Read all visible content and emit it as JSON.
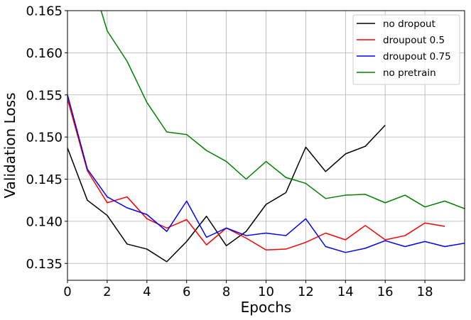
{
  "chart_data": {
    "type": "line",
    "title": "",
    "xlabel": "Epochs",
    "ylabel": "Validation Loss",
    "xlim": [
      0,
      20
    ],
    "ylim": [
      0.133,
      0.165
    ],
    "xticks": [
      0,
      2,
      4,
      6,
      8,
      10,
      12,
      14,
      16,
      18
    ],
    "xtick_labels": [
      "0",
      "2",
      "4",
      "6",
      "8",
      "10",
      "12",
      "14",
      "16",
      "18"
    ],
    "yticks": [
      0.135,
      0.14,
      0.145,
      0.15,
      0.155,
      0.16,
      0.165
    ],
    "ytick_labels": [
      "0.135",
      "0.140",
      "0.145",
      "0.150",
      "0.155",
      "0.160",
      "0.165"
    ],
    "grid": true,
    "legend_position": "top-right",
    "series": [
      {
        "name": "no dropout",
        "color": "#000000",
        "x": [
          0,
          1,
          2,
          3,
          4,
          5,
          6,
          7,
          8,
          9,
          10,
          11,
          12,
          13,
          14,
          15,
          16
        ],
        "y": [
          0.1487,
          0.1425,
          0.1407,
          0.1373,
          0.1367,
          0.1352,
          0.1376,
          0.1406,
          0.1371,
          0.1388,
          0.142,
          0.1434,
          0.1488,
          0.1459,
          0.148,
          0.1489,
          0.1514
        ]
      },
      {
        "name": "droupout 0.5",
        "color": "#ff0000",
        "x": [
          0,
          1,
          2,
          3,
          4,
          5,
          6,
          7,
          8,
          9,
          10,
          11,
          12,
          13,
          14,
          15,
          16,
          17,
          18,
          19
        ],
        "y": [
          0.1545,
          0.146,
          0.1422,
          0.1429,
          0.1403,
          0.1392,
          0.1402,
          0.1372,
          0.1392,
          0.138,
          0.1366,
          0.1367,
          0.1375,
          0.1386,
          0.1378,
          0.1395,
          0.1378,
          0.1383,
          0.1398,
          0.1394
        ]
      },
      {
        "name": "droupout 0.75",
        "color": "#0000ff",
        "x": [
          0,
          1,
          2,
          3,
          4,
          5,
          6,
          7,
          8,
          9,
          10,
          11,
          12,
          13,
          14,
          15,
          16,
          17,
          18,
          19,
          20
        ],
        "y": [
          0.155,
          0.1462,
          0.1429,
          0.1416,
          0.1408,
          0.1388,
          0.1424,
          0.1381,
          0.1392,
          0.1383,
          0.1386,
          0.1383,
          0.1403,
          0.137,
          0.1363,
          0.1368,
          0.1377,
          0.137,
          0.1376,
          0.137,
          0.1374
        ]
      },
      {
        "name": "no pretrain",
        "color": "#008000",
        "x": [
          1.5,
          2,
          3,
          4,
          5,
          6,
          7,
          8,
          9,
          10,
          11,
          12,
          13,
          14,
          15,
          16,
          17,
          18,
          19,
          20
        ],
        "y": [
          0.1665,
          0.1626,
          0.159,
          0.1541,
          0.1506,
          0.1503,
          0.1484,
          0.1471,
          0.145,
          0.1471,
          0.1452,
          0.1445,
          0.1427,
          0.1431,
          0.1432,
          0.1422,
          0.1431,
          0.1417,
          0.1424,
          0.1415
        ]
      }
    ]
  }
}
